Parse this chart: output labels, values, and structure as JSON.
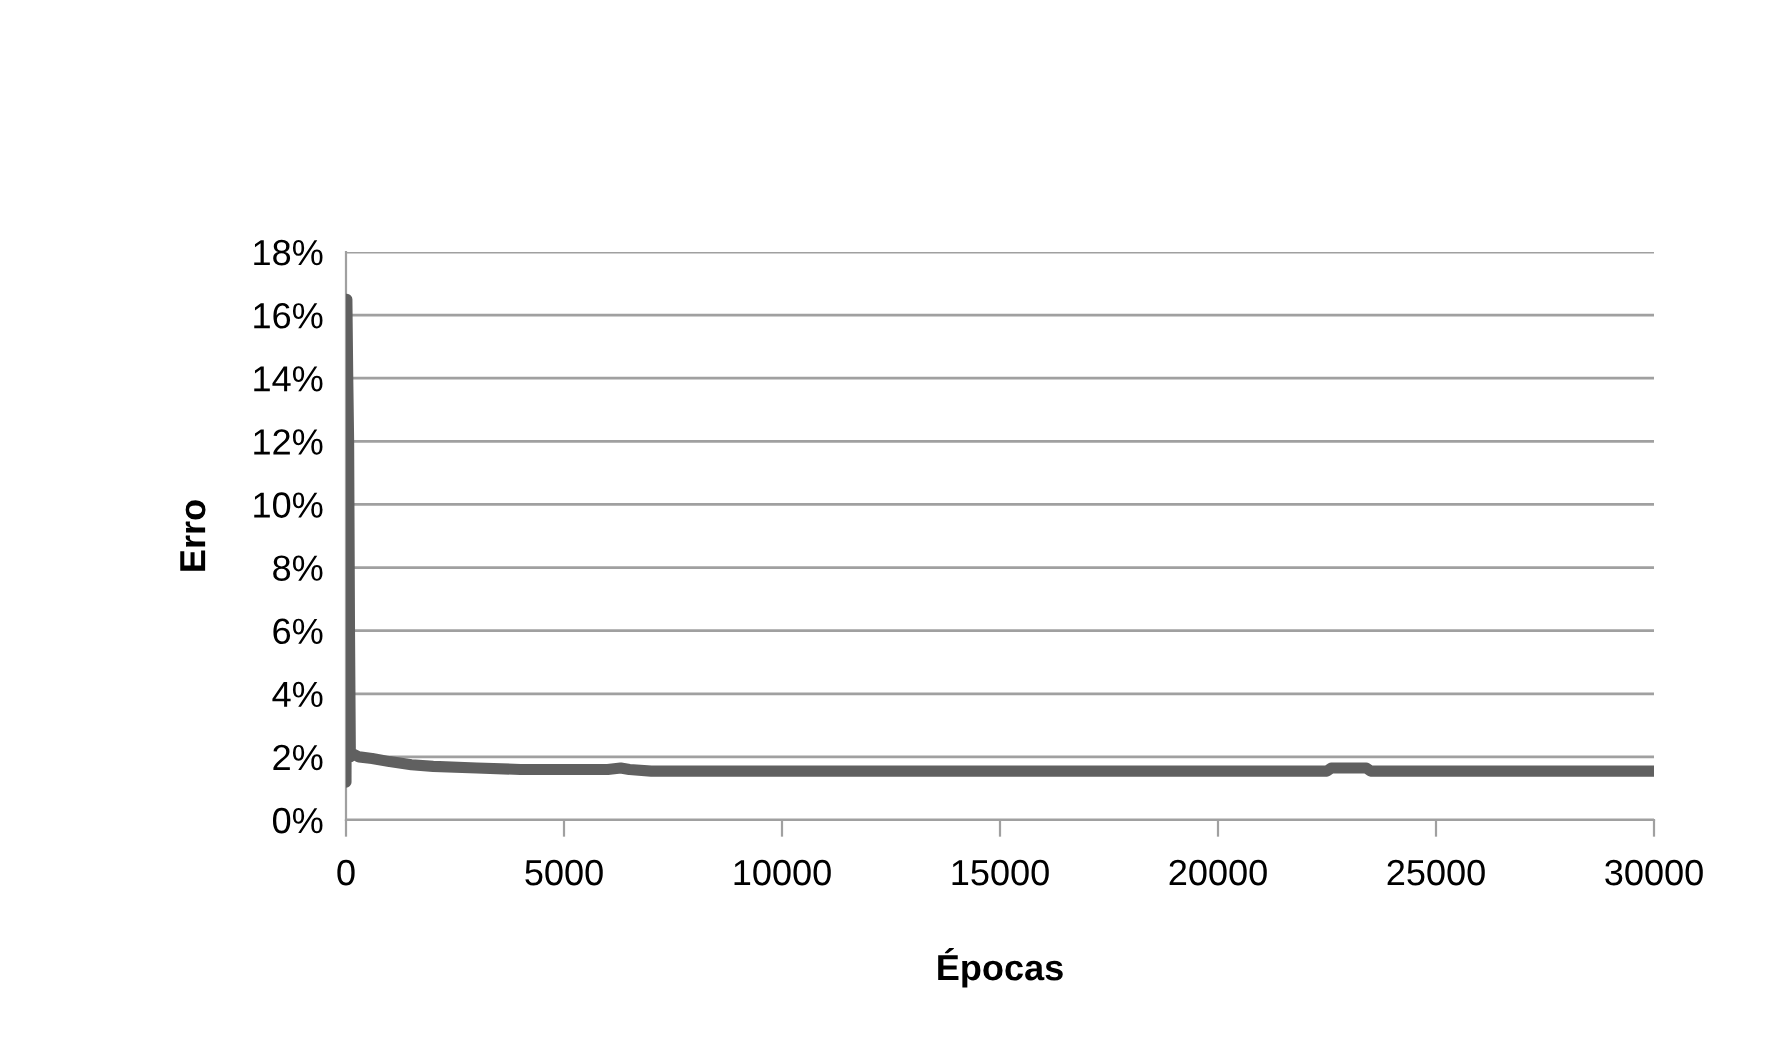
{
  "chart_data": {
    "type": "line",
    "xlabel": "Épocas",
    "ylabel": "Erro",
    "series": [
      {
        "color": "#606060",
        "x": [
          0,
          20,
          40,
          60,
          80,
          100,
          150,
          300,
          600,
          1000,
          1500,
          2000,
          3000,
          4000,
          5000,
          6000,
          6300,
          6500,
          7000,
          10000,
          15000,
          20000,
          22500,
          22600,
          23400,
          23500,
          26000,
          30000
        ],
        "values": [
          1.2,
          16.5,
          14,
          12,
          6,
          2.0,
          2.1,
          2.0,
          1.95,
          1.85,
          1.75,
          1.7,
          1.65,
          1.6,
          1.6,
          1.6,
          1.65,
          1.6,
          1.55,
          1.55,
          1.55,
          1.55,
          1.55,
          1.65,
          1.65,
          1.55,
          1.55,
          1.55
        ]
      }
    ],
    "xlim": [
      0,
      30000
    ],
    "xticks": [
      0,
      5000,
      10000,
      15000,
      20000,
      25000,
      30000
    ],
    "ylim": [
      0,
      18
    ],
    "yticks": [
      {
        "value": 0,
        "label": "0%"
      },
      {
        "value": 2,
        "label": "2%"
      },
      {
        "value": 4,
        "label": "4%"
      },
      {
        "value": 6,
        "label": "6%"
      },
      {
        "value": 8,
        "label": "8%"
      },
      {
        "value": 10,
        "label": "10%"
      },
      {
        "value": 12,
        "label": "12%"
      },
      {
        "value": 14,
        "label": "14%"
      },
      {
        "value": 16,
        "label": "16%"
      },
      {
        "value": 18,
        "label": "18%"
      }
    ],
    "grid": "y",
    "legend": false,
    "marker": "none",
    "line_style": "solid"
  }
}
